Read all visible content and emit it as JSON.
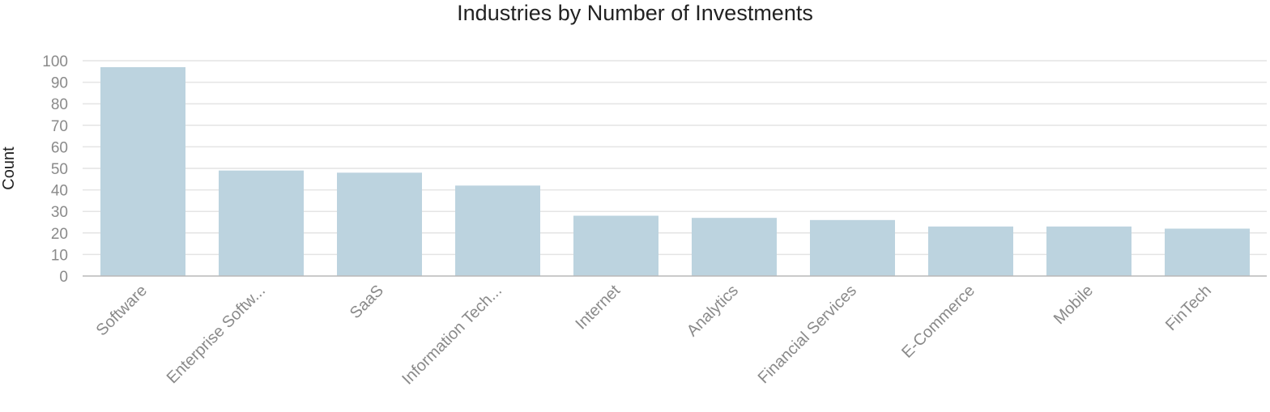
{
  "chart_data": {
    "type": "bar",
    "title": "Industries by Number of Investments",
    "xlabel": "",
    "ylabel": "Count",
    "categories": [
      "Software",
      "Enterprise Softw...",
      "SaaS",
      "Information Tech...",
      "Internet",
      "Analytics",
      "Financial Services",
      "E-Commerce",
      "Mobile",
      "FinTech"
    ],
    "values": [
      97,
      49,
      48,
      42,
      28,
      27,
      26,
      23,
      23,
      22
    ],
    "ylim": [
      0,
      100
    ],
    "yticks": [
      0,
      10,
      20,
      30,
      40,
      50,
      60,
      70,
      80,
      90,
      100
    ],
    "grid": true,
    "legend": "none",
    "bar_color": "#bcd3df",
    "grid_color": "#e4e4e4",
    "axis_color": "#b8b8b8",
    "tick_label_color": "#8a8a8a",
    "title_color": "#222222"
  }
}
